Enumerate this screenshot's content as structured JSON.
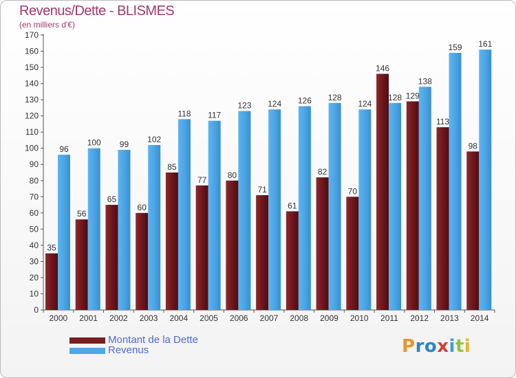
{
  "title": "Revenus/Dette - BLISMES",
  "subtitle": "(en milliers d'€)",
  "legend": [
    {
      "label": "Montant de la Dette",
      "color": "#7a1e22"
    },
    {
      "label": "Revenus",
      "color": "#4ea8e8"
    }
  ],
  "brand": [
    "P",
    "r",
    "o",
    "x",
    "i",
    "t",
    "i"
  ],
  "chart_data": {
    "type": "bar",
    "categories": [
      "2000",
      "2001",
      "2002",
      "2003",
      "2004",
      "2005",
      "2006",
      "2007",
      "2008",
      "2009",
      "2010",
      "2011",
      "2012",
      "2013",
      "2014"
    ],
    "series": [
      {
        "name": "Montant de la Dette",
        "color": "#7a1e22",
        "values": [
          35,
          56,
          65,
          60,
          85,
          77,
          80,
          71,
          61,
          82,
          70,
          146,
          129,
          113,
          98
        ]
      },
      {
        "name": "Revenus",
        "color": "#4ea8e8",
        "values": [
          96,
          100,
          99,
          102,
          118,
          117,
          123,
          124,
          126,
          128,
          124,
          128,
          138,
          159,
          161
        ]
      }
    ],
    "ylim": [
      0,
      170
    ],
    "ytick_step": 10,
    "grid": false,
    "legend_position": "bottom-left"
  }
}
